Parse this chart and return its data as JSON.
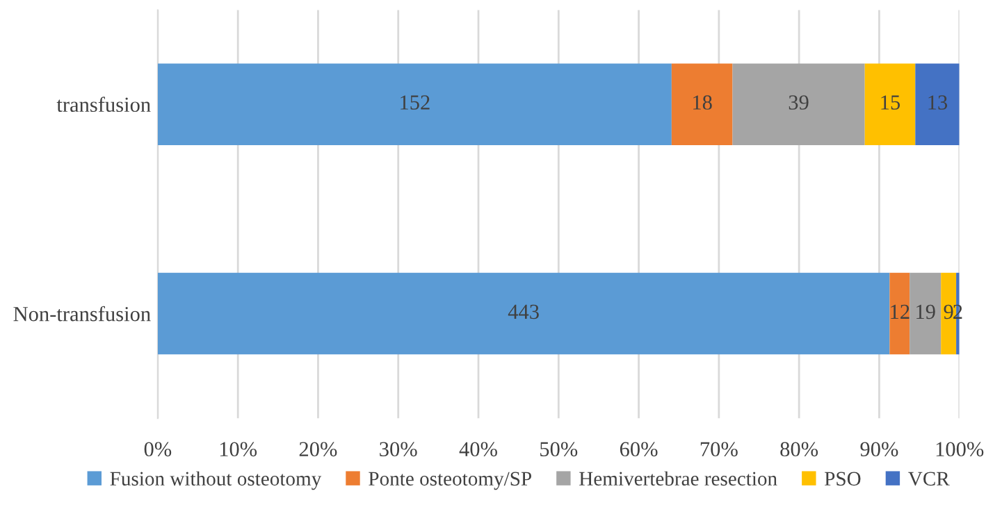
{
  "chart_data": {
    "type": "bar",
    "orientation": "horizontal",
    "stacked": true,
    "categories": [
      "transfusion",
      "Non-transfusion"
    ],
    "series": [
      {
        "name": "Fusion without osteotomy",
        "color": "#5b9bd5",
        "values": [
          64.1,
          91.3
        ]
      },
      {
        "name": "Ponte osteotomy/SP",
        "color": "#ed7d31",
        "values": [
          7.6,
          2.5
        ]
      },
      {
        "name": "Hemivertebrae resection",
        "color": "#a5a5a5",
        "values": [
          16.5,
          3.9
        ]
      },
      {
        "name": "PSO",
        "color": "#ffc000",
        "values": [
          6.3,
          1.9
        ]
      },
      {
        "name": "VCR",
        "color": "#4472c4",
        "values": [
          5.5,
          0.4
        ]
      }
    ],
    "annotations": [
      "152",
      "443",
      "18",
      "12",
      "39",
      "19",
      "15",
      "9",
      "13",
      "2"
    ],
    "xlim": [
      0,
      100
    ],
    "xticks": [
      {
        "value": 0,
        "label": "0%"
      },
      {
        "value": 10,
        "label": "10%"
      },
      {
        "value": 20,
        "label": "20%"
      },
      {
        "value": 30,
        "label": "30%"
      },
      {
        "value": 40,
        "label": "40%"
      },
      {
        "value": 50,
        "label": "50%"
      },
      {
        "value": 60,
        "label": "60%"
      },
      {
        "value": 70,
        "label": "70%"
      },
      {
        "value": 80,
        "label": "80%"
      },
      {
        "value": 90,
        "label": "90%"
      },
      {
        "value": 100,
        "label": "100%"
      }
    ],
    "grid": "x",
    "legend": "bottom"
  }
}
